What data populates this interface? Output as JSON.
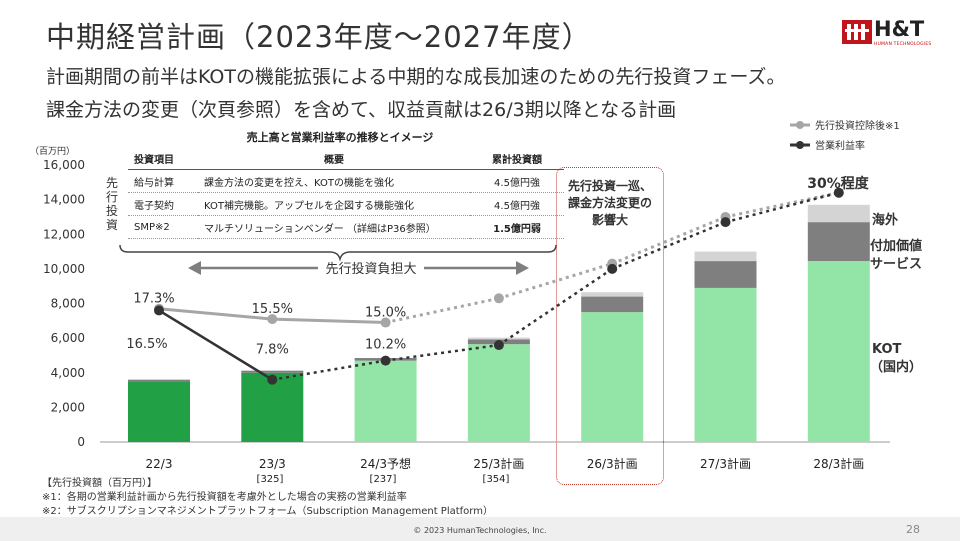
{
  "header": {
    "title": "中期経営計画（2023年度～2027年度）",
    "subtitle_line1": "計画期間の前半はKOTの機能拡張による中期的な成長加速のための先行投資フェーズ。",
    "subtitle_line2": "課金方法の変更（次頁参照）を含めて、収益貢献は26/3期以降となる計画",
    "logo_text": "H&T",
    "logo_sub": "HUMAN TECHNOLOGIES",
    "brand_color": "#c0151c"
  },
  "table": {
    "title": "売上高と営業利益率の推移とイメージ",
    "side_label": "先行投資",
    "headers": [
      "投資項目",
      "概要",
      "累計投資額"
    ],
    "rows": [
      {
        "item": "給与計算",
        "desc": "課金方法の変更を控え、KOTの機能を強化",
        "amount": "4.5億円強"
      },
      {
        "item": "電子契約",
        "desc": "KOT補完機能。アップセルを企図する機能強化",
        "amount": "4.5億円強"
      },
      {
        "item": "SMP※2",
        "desc": "マルチソリューションベンダー （詳細はP36参照）",
        "amount": "1.5億円弱"
      }
    ]
  },
  "chart_data": {
    "type": "bar",
    "ylabel": "（百万円）",
    "ylim": [
      0,
      16000
    ],
    "yticks": [
      "0",
      "2,000",
      "4,000",
      "6,000",
      "8,000",
      "10,000",
      "12,000",
      "14,000",
      "16,000"
    ],
    "categories": [
      "22/3",
      "23/3",
      "24/3予想",
      "25/3計画",
      "26/3計画",
      "27/3計画",
      "28/3計画"
    ],
    "series": [
      {
        "name": "KOT（国内）",
        "values": [
          3500,
          4000,
          4700,
          5650,
          7500,
          8900,
          10450
        ]
      },
      {
        "name": "付加価値サービス",
        "values": [
          100,
          120,
          150,
          280,
          900,
          1550,
          2250
        ]
      },
      {
        "name": "海外",
        "values": [
          0,
          0,
          0,
          100,
          250,
          550,
          1000
        ]
      }
    ],
    "line_series": [
      {
        "name": "先行投資控除後※1",
        "values": [
          7700,
          7100,
          6900,
          8300,
          10300,
          13000,
          14400
        ]
      },
      {
        "name": "営業利益率",
        "values": [
          7600,
          3600,
          4700,
          5600,
          10000,
          12700,
          14400
        ]
      }
    ],
    "rate_labels": [
      "17.3%",
      "15.5%",
      "15.0%",
      "",
      "",
      "",
      ""
    ],
    "op_labels": [
      "16.5%",
      "7.8%",
      "10.2%",
      "",
      "",
      "",
      ""
    ],
    "target_label": "30%程度",
    "bar_labels": {
      "overseas": "海外",
      "value_added": "付加価値\nサービス",
      "kot": "KOT\n（国内）"
    },
    "arrow_label": "先行投資負担大",
    "band_label": "先行投資一巡、\n課金方法変更の\n影響大",
    "colors": {
      "kot_actual": "#22a046",
      "kot_plan": "#93e5a7",
      "value_added": "#7f7f7f",
      "overseas": "#d4d4d4",
      "line_after_invest": "#a6a6a6",
      "line_op": "#333333",
      "band": "#c0392b"
    }
  },
  "costs": {
    "header": "【先行投資額（百万円）】",
    "values": [
      "[325]",
      "[237]",
      "[354]"
    ]
  },
  "notes": {
    "n1": "※1：各期の営業利益計画から先行投資額を考慮外とした場合の実務の営業利益率",
    "n2": "※2：サブスクリプションマネジメントプラットフォーム（Subscription Management Platform）"
  },
  "footer": {
    "copyright": "© 2023 HumanTechnologies, Inc.",
    "page": "28"
  }
}
